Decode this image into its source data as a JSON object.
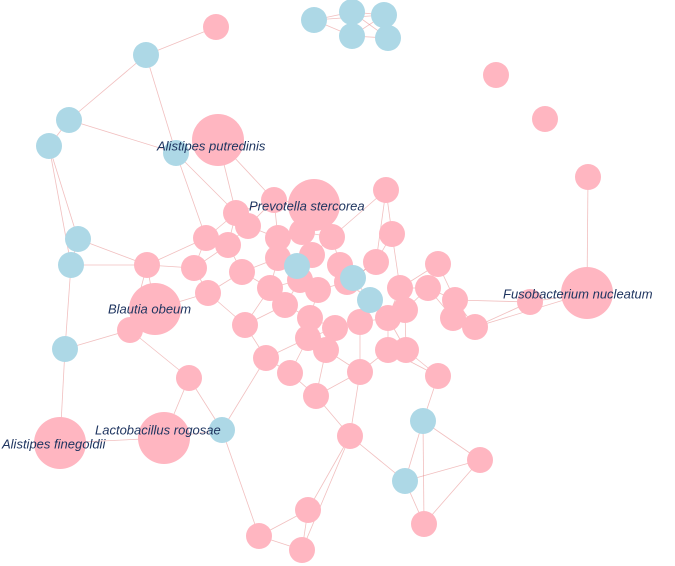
{
  "labels": [
    "Alistipes putredinis",
    "Prevotella stercorea",
    "Blautia obeum",
    "Fusobacterium nucleatum",
    "Lactobacillus rogosae",
    "Alistipes finegoldii"
  ]
}
